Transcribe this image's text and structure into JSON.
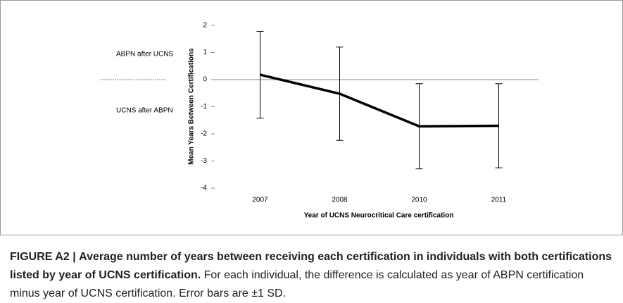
{
  "chart_data": {
    "type": "line",
    "categories": [
      "2007",
      "2008",
      "2010",
      "2011"
    ],
    "series": [
      {
        "name": "Mean",
        "color": "#000000",
        "values": [
          0.18,
          -0.52,
          -1.72,
          -1.7
        ],
        "errors": [
          1.6,
          1.72,
          1.57,
          1.55
        ]
      }
    ],
    "ylim": [
      -4,
      2
    ],
    "yticks": [
      -4,
      -3,
      -2,
      -1,
      0,
      1,
      2
    ],
    "y_label": "Mean Years Between Certifications",
    "x_label": "Year of UCNS Neurocritical Care certification",
    "annotations": [
      "ABPN after UCNS",
      "UCNS after ABPN"
    ]
  },
  "caption": {
    "label": "FIGURE A2 |",
    "title": "Average number of years between receiving each certification in individuals with both certifications listed by year of UCNS certification.",
    "text": "For each individual, the difference is calculated as year of ABPN certification minus year of UCNS certification. Error bars are ±1 SD."
  }
}
